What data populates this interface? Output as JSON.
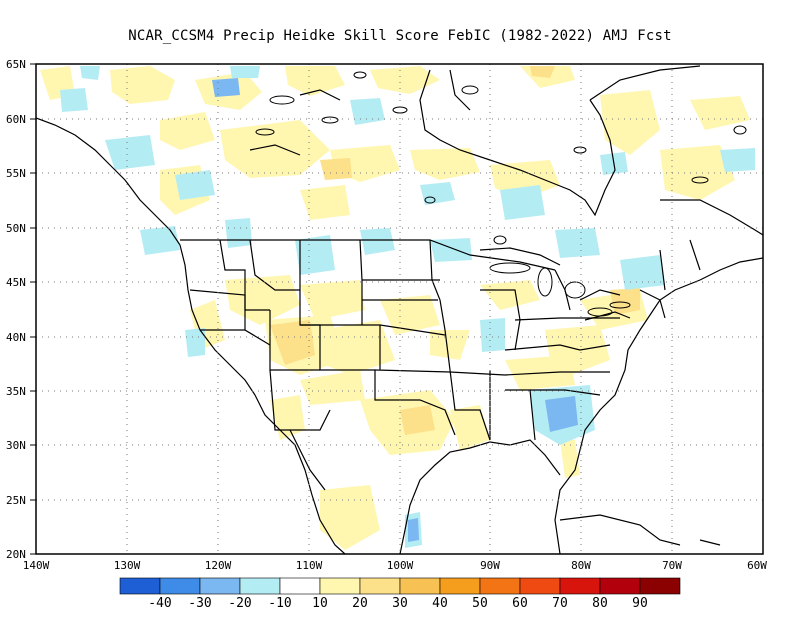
{
  "title": "NCAR_CCSM4 Precip Heidke Skill Score FebIC (1982-2022) AMJ Fcst",
  "lat_labels": [
    "65N",
    "60N",
    "55N",
    "50N",
    "45N",
    "40N",
    "35N",
    "30N",
    "25N",
    "20N"
  ],
  "lon_labels": [
    "140W",
    "130W",
    "120W",
    "110W",
    "100W",
    "90W",
    "80W",
    "70W",
    "60W"
  ],
  "colorbar": {
    "colors": [
      "#1f5fd6",
      "#3f8ce8",
      "#7bb7f0",
      "#b4ecf4",
      "#ffffff",
      "#fff6b0",
      "#fce08a",
      "#f7c153",
      "#f59e1e",
      "#f27414",
      "#ee4a12",
      "#d8150c",
      "#b2000c",
      "#8b0000"
    ],
    "labels": [
      "-40",
      "-30",
      "-20",
      "-10",
      "10",
      "20",
      "30",
      "40",
      "50",
      "60",
      "70",
      "80",
      "90"
    ]
  }
}
